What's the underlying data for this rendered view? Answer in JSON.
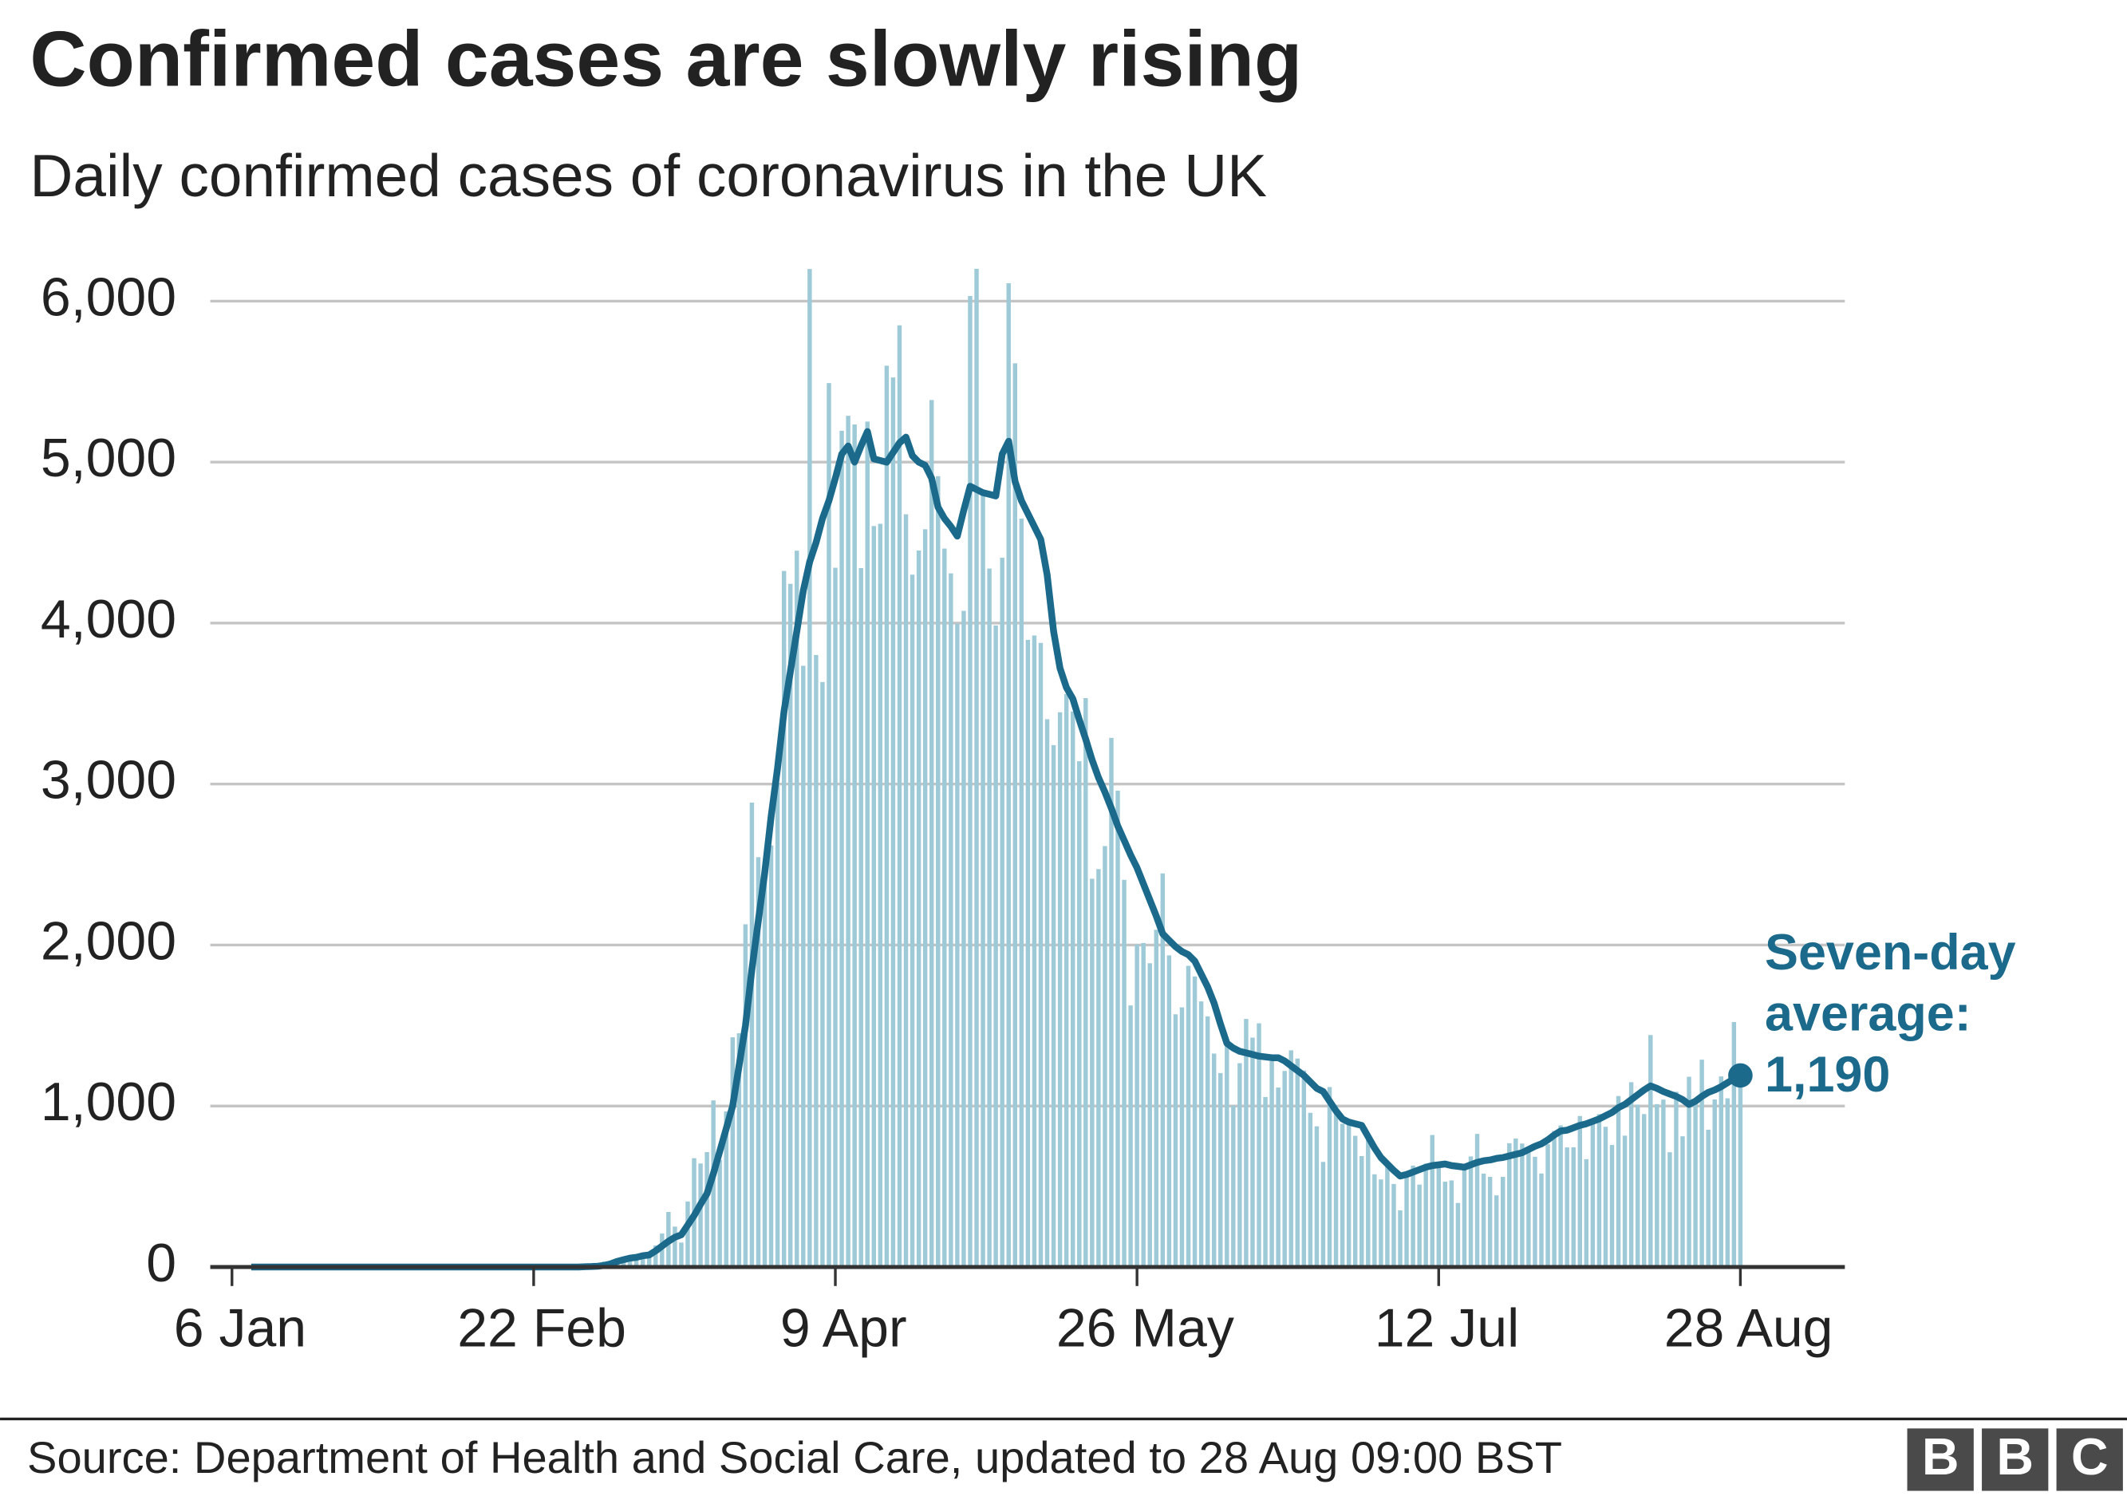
{
  "chart_data": {
    "type": "combo",
    "title": "Confirmed cases are slowly rising",
    "subtitle": "Daily confirmed cases of coronavirus in the UK",
    "source": "Source: Department of Health and Social Care, updated to 28 Aug 09:00 BST",
    "logo": [
      "B",
      "B",
      "C"
    ],
    "annotation": [
      "Seven-day",
      "average:",
      "1,190"
    ],
    "ylim": [
      0,
      6000
    ],
    "yticks": [
      0,
      {
        "value": 1000,
        "label": "1,000"
      },
      {
        "value": 2000,
        "label": "2,000"
      },
      {
        "value": 3000,
        "label": "3,000"
      },
      {
        "value": 4000,
        "label": "4,000"
      },
      {
        "value": 5000,
        "label": "5,000"
      },
      {
        "value": 6000,
        "label": "6,000"
      }
    ],
    "grid": true,
    "categories": [
      "6 Jan",
      null,
      null,
      null,
      null,
      null,
      null,
      null,
      null,
      null,
      null,
      null,
      null,
      null,
      null,
      null,
      null,
      null,
      null,
      null,
      null,
      null,
      null,
      null,
      null,
      null,
      null,
      null,
      null,
      null,
      null,
      null,
      null,
      null,
      null,
      null,
      null,
      null,
      null,
      null,
      null,
      null,
      null,
      null,
      null,
      null,
      null,
      "22 Feb",
      null,
      null,
      null,
      null,
      null,
      null,
      null,
      null,
      null,
      null,
      null,
      null,
      null,
      null,
      null,
      null,
      null,
      null,
      null,
      null,
      null,
      null,
      null,
      null,
      null,
      null,
      null,
      null,
      null,
      null,
      null,
      null,
      null,
      null,
      null,
      null,
      null,
      null,
      null,
      null,
      null,
      null,
      null,
      null,
      null,
      null,
      "9 Apr",
      null,
      null,
      null,
      null,
      null,
      null,
      null,
      null,
      null,
      null,
      null,
      null,
      null,
      null,
      null,
      null,
      null,
      null,
      null,
      null,
      null,
      null,
      null,
      null,
      null,
      null,
      null,
      null,
      null,
      null,
      null,
      null,
      null,
      null,
      null,
      null,
      null,
      null,
      null,
      null,
      null,
      null,
      null,
      null,
      null,
      null,
      "26 May",
      null,
      null,
      null,
      null,
      null,
      null,
      null,
      null,
      null,
      null,
      null,
      null,
      null,
      null,
      null,
      null,
      null,
      null,
      null,
      null,
      null,
      null,
      null,
      null,
      null,
      null,
      null,
      null,
      null,
      null,
      null,
      null,
      null,
      null,
      null,
      null,
      null,
      null,
      null,
      null,
      null,
      null,
      null,
      null,
      null,
      null,
      "12 Jul",
      null,
      null,
      null,
      null,
      null,
      null,
      null,
      null,
      null,
      null,
      null,
      null,
      null,
      null,
      null,
      null,
      null,
      null,
      null,
      null,
      null,
      null,
      null,
      null,
      null,
      null,
      null,
      null,
      null,
      null,
      null,
      null,
      null,
      null,
      null,
      null,
      null,
      null,
      null,
      null,
      null,
      null,
      null,
      null,
      null,
      null,
      "28 Aug"
    ],
    "series": [
      {
        "type": "bar",
        "color": "#9ecad8",
        "values": [
          0,
          0,
          0,
          0,
          0,
          0,
          0,
          0,
          0,
          0,
          0,
          0,
          0,
          0,
          0,
          0,
          0,
          0,
          0,
          0,
          0,
          0,
          0,
          0,
          0,
          0,
          0,
          0,
          0,
          0,
          0,
          0,
          0,
          0,
          0,
          0,
          0,
          0,
          0,
          0,
          0,
          0,
          0,
          0,
          0,
          0,
          0,
          1,
          0,
          4,
          0,
          3,
          7,
          9,
          6,
          12,
          4,
          11,
          34,
          30,
          48,
          43,
          67,
          46,
          50,
          83,
          134,
          208,
          342,
          251,
          152,
          407,
          676,
          643,
          714,
          1035,
          665,
          967,
          1427,
          1452,
          2129,
          2885,
          2546,
          2433,
          2619,
          3009,
          4324,
          4244,
          4450,
          3735,
          6200,
          3802,
          3634,
          5491,
          4344,
          5195,
          5288,
          5234,
          4342,
          5252,
          4603,
          4617,
          5599,
          5526,
          5850,
          4676,
          4301,
          4451,
          4583,
          5386,
          4913,
          4463,
          4309,
          3996,
          4076,
          6032,
          6201,
          4806,
          4339,
          3985,
          4406,
          6111,
          5614,
          4649,
          3896,
          3923,
          3877,
          3403,
          3242,
          3446,
          3560,
          3451,
          3142,
          3534,
          2412,
          2472,
          2615,
          3287,
          2959,
          2405,
          1625,
          2004,
          2013,
          1887,
          2095,
          2445,
          1936,
          1570,
          1613,
          1871,
          1805,
          1650,
          1557,
          1326,
          1205,
          1387,
          1003,
          1266,
          1541,
          1425,
          1514,
          1056,
          1279,
          1115,
          1218,
          1346,
          1295,
          1221,
          958,
          874,
          653,
          1118,
          1006,
          890,
          901,
          815,
          689,
          829,
          576,
          544,
          624,
          516,
          352,
          581,
          630,
          512,
          642,
          820,
          650,
          530,
          538,
          398,
          642,
          687,
          827,
          580,
          560,
          445,
          560,
          769,
          798,
          767,
          747,
          685,
          581,
          763,
          846,
          880,
          743,
          744,
          938,
          670,
          892,
          950,
          871,
          758,
          1062,
          816,
          1148,
          1009,
          950,
          1441,
          1012,
          1040,
          713,
          1089,
          812,
          1182,
          1033,
          1288,
          853,
          1041,
          1184,
          1048,
          1522,
          1180
        ]
      },
      {
        "type": "line",
        "color": "#1b6a8c",
        "values": [
          null,
          null,
          null,
          0,
          0,
          0,
          0,
          0,
          0,
          0,
          0,
          0,
          0,
          0,
          0,
          0,
          0,
          0,
          0,
          0,
          0,
          0,
          0,
          0,
          0,
          0,
          0,
          0,
          0,
          0,
          0,
          0,
          0,
          0,
          0,
          0,
          0,
          0,
          0,
          0,
          0,
          0,
          0,
          0,
          0,
          0,
          0,
          0,
          0,
          0,
          0,
          0,
          0,
          0,
          0,
          2,
          3,
          5,
          10,
          20,
          35,
          45,
          55,
          60,
          70,
          75,
          100,
          130,
          160,
          185,
          200,
          260,
          320,
          390,
          455,
          580,
          720,
          860,
          1000,
          1250,
          1500,
          1850,
          2150,
          2450,
          2800,
          3100,
          3450,
          3700,
          3950,
          4200,
          4380,
          4500,
          4650,
          4760,
          4900,
          5050,
          5100,
          5000,
          5100,
          5190,
          5020,
          5010,
          5000,
          5060,
          5120,
          5155,
          5040,
          5000,
          4980,
          4900,
          4720,
          4650,
          4600,
          4540,
          4700,
          4850,
          4830,
          4810,
          4800,
          4790,
          5050,
          5130,
          4880,
          4760,
          4680,
          4600,
          4520,
          4300,
          3950,
          3720,
          3600,
          3530,
          3400,
          3280,
          3150,
          3040,
          2950,
          2850,
          2740,
          2650,
          2560,
          2480,
          2380,
          2280,
          2180,
          2070,
          2030,
          1990,
          1960,
          1940,
          1900,
          1820,
          1740,
          1640,
          1510,
          1390,
          1360,
          1340,
          1330,
          1320,
          1310,
          1305,
          1300,
          1300,
          1280,
          1250,
          1220,
          1190,
          1150,
          1110,
          1090,
          1030,
          970,
          920,
          900,
          890,
          880,
          810,
          740,
          680,
          640,
          600,
          565,
          575,
          590,
          605,
          620,
          630,
          635,
          640,
          630,
          625,
          620,
          635,
          650,
          660,
          665,
          675,
          680,
          690,
          700,
          710,
          730,
          750,
          765,
          790,
          820,
          845,
          850,
          865,
          880,
          890,
          905,
          920,
          940,
          960,
          990,
          1010,
          1040,
          1070,
          1100,
          1125,
          1110,
          1090,
          1075,
          1060,
          1040,
          1010,
          1030,
          1060,
          1085,
          1100,
          1120,
          1145,
          1170,
          1190
        ]
      }
    ]
  }
}
